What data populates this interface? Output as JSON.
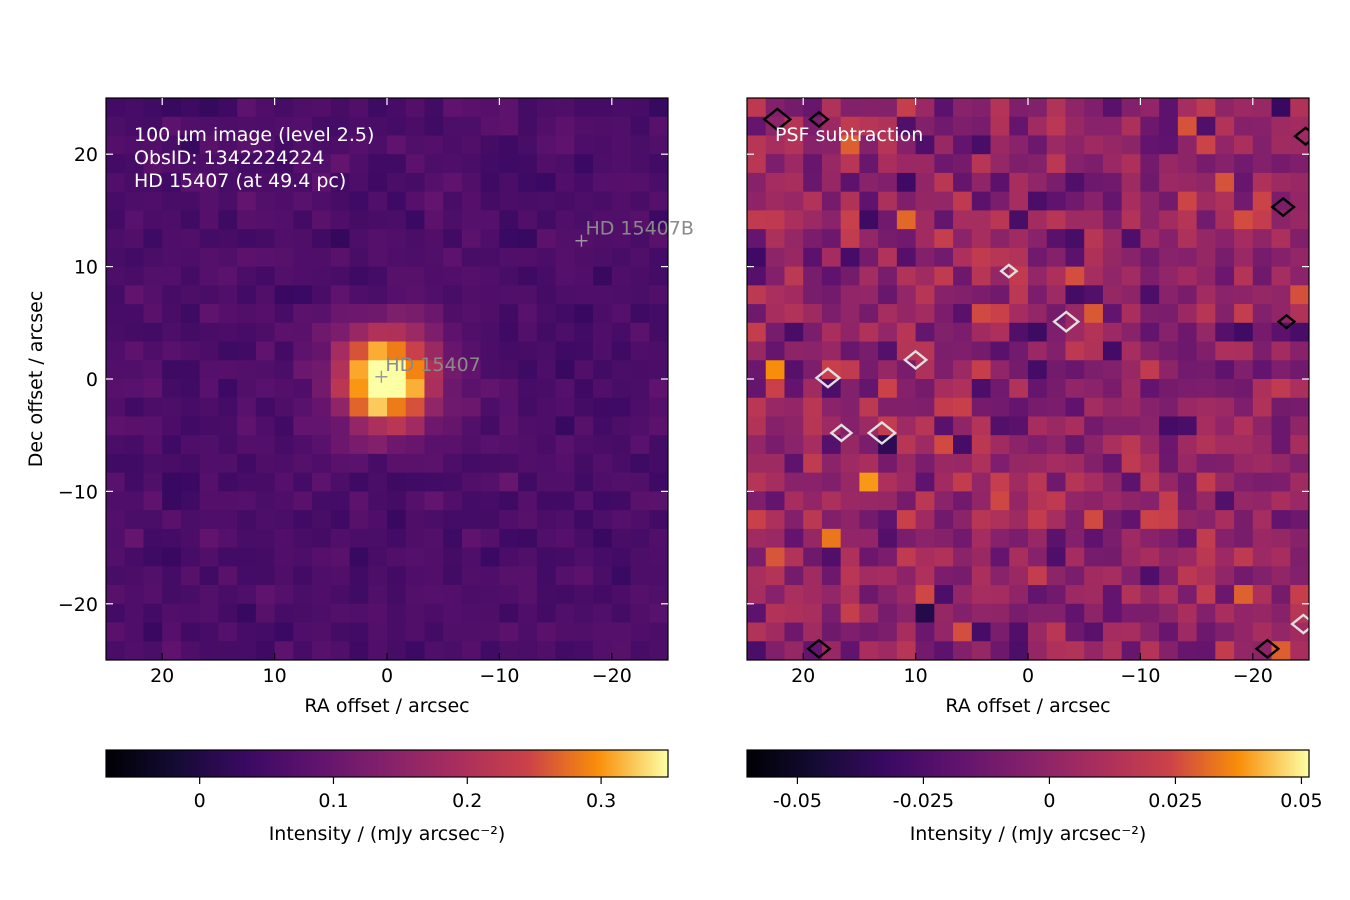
{
  "chart_data": [
    {
      "type": "heatmap",
      "panel": "left",
      "annotation_lines": [
        "100 µm image (level 2.5)",
        "ObsID: 1342224224",
        "HD 15407 (at 49.4 pc)"
      ],
      "xlabel": "RA offset / arcsec",
      "ylabel": "Dec offset / arcsec",
      "xlim": [
        25,
        -25
      ],
      "ylim": [
        -25,
        25
      ],
      "xticks": [
        20,
        10,
        0,
        -10,
        -20
      ],
      "xtick_labels": [
        "20",
        "10",
        "0",
        "−10",
        "−20"
      ],
      "yticks": [
        20,
        10,
        0,
        -10,
        -20
      ],
      "ytick_labels": [
        "20",
        "10",
        "0",
        "−10",
        "−20"
      ],
      "grid": false,
      "colormap": "inferno",
      "source": {
        "x": 0,
        "y": 0,
        "peak": 0.34,
        "sigma_arcsec": 3.2
      },
      "background_mean": 0.06,
      "background_noise": 0.018,
      "markers": [
        {
          "label": "HD  15407",
          "x": 0.5,
          "y": 0.2
        },
        {
          "label": "HD  15407B",
          "x": -17.3,
          "y": 12.3
        }
      ],
      "colorbar": {
        "label": "Intensity / (mJy arcsec⁻²)",
        "min": -0.07,
        "max": 0.35,
        "ticks": [
          0,
          0.1,
          0.2,
          0.3
        ],
        "tick_labels": [
          "0",
          "0.1",
          "0.2",
          "0.3"
        ]
      }
    },
    {
      "type": "heatmap",
      "panel": "right",
      "annotation_lines": [
        "PSF subtraction"
      ],
      "xlabel": "RA offset / arcsec",
      "xlim": [
        25,
        -25
      ],
      "ylim": [
        -25,
        25
      ],
      "xticks": [
        20,
        10,
        0,
        -10,
        -20
      ],
      "xtick_labels": [
        "20",
        "10",
        "0",
        "−10",
        "−20"
      ],
      "grid": false,
      "colormap": "inferno",
      "residual_noise": 0.018,
      "contours": [
        {
          "level": "positive",
          "color": "#000000",
          "points": [
            [
              22.3,
              23.1
            ],
            [
              18.6,
              23.1
            ],
            [
              18.6,
              -24.0
            ],
            [
              -21.3,
              -24.0
            ],
            [
              -23.0,
              5.1
            ],
            [
              -22.7,
              15.3
            ],
            [
              -24.7,
              21.6
            ]
          ]
        },
        {
          "level": "negative",
          "color": "#e0e0e0",
          "points": [
            [
              17.8,
              0.1
            ],
            [
              16.6,
              -4.8
            ],
            [
              13.0,
              -4.8
            ],
            [
              10.0,
              1.7
            ],
            [
              1.7,
              9.6
            ],
            [
              -3.4,
              5.1
            ],
            [
              -24.5,
              -21.8
            ]
          ]
        }
      ],
      "colorbar": {
        "label": "Intensity / (mJy arcsec⁻²)",
        "min": -0.06,
        "max": 0.0515,
        "ticks": [
          -0.05,
          -0.025,
          0,
          0.025,
          0.05
        ],
        "tick_labels": [
          "-0.05",
          "-0.025",
          "0",
          "0.025",
          "0.05"
        ]
      }
    }
  ]
}
